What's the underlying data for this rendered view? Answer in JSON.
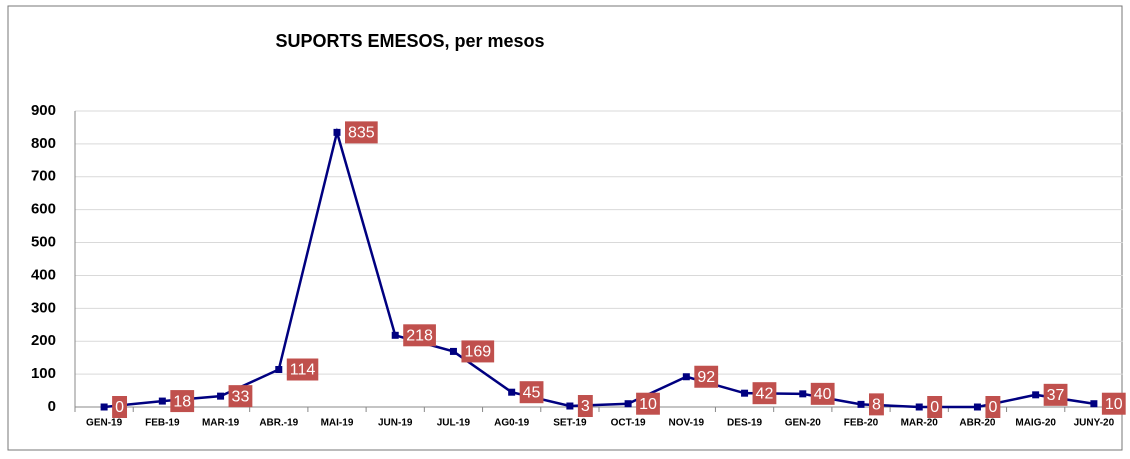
{
  "chart_data": {
    "type": "line",
    "title": "SUPORTS EMESOS, per mesos",
    "categories": [
      "GEN-19",
      "FEB-19",
      "MAR-19",
      "ABR.-19",
      "MAI-19",
      "JUN-19",
      "JUL-19",
      "AG0-19",
      "SET-19",
      "OCT-19",
      "NOV-19",
      "DES-19",
      "GEN-20",
      "FEB-20",
      "MAR-20",
      "ABR-20",
      "MAIG-20",
      "JUNY-20"
    ],
    "values": [
      0,
      18,
      33,
      114,
      835,
      218,
      169,
      45,
      3,
      10,
      92,
      42,
      40,
      8,
      0,
      0,
      37,
      10
    ],
    "color": "#000080",
    "label_color": "#c0504d",
    "ylim": [
      0,
      900
    ],
    "yticks": [
      0,
      100,
      200,
      300,
      400,
      500,
      600,
      700,
      800,
      900
    ],
    "grid": true
  }
}
